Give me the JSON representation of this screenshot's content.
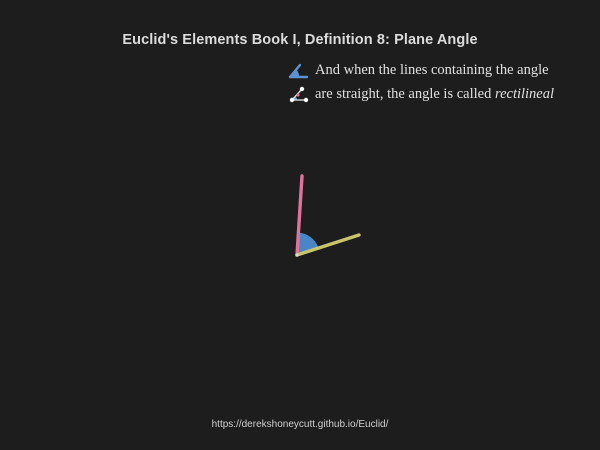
{
  "title": "Euclid's Elements Book I, Definition 8: Plane Angle",
  "definition": {
    "line1": "And when the lines containing the angle",
    "line2_prefix": "are straight, the angle is called ",
    "line2_term": "rectilineal",
    "line1_icon": "angle-sector-icon",
    "line2_icon": "straight-lines-icon"
  },
  "footer": {
    "url": "https://derekshoneycutt.github.io/Euclid/"
  },
  "colors": {
    "background": "#1d1d1d",
    "angle_fill": "#4a86c6",
    "line_a": "#e0739a",
    "line_b": "#c9c46a",
    "vertex_point": "#d9d9d9"
  }
}
